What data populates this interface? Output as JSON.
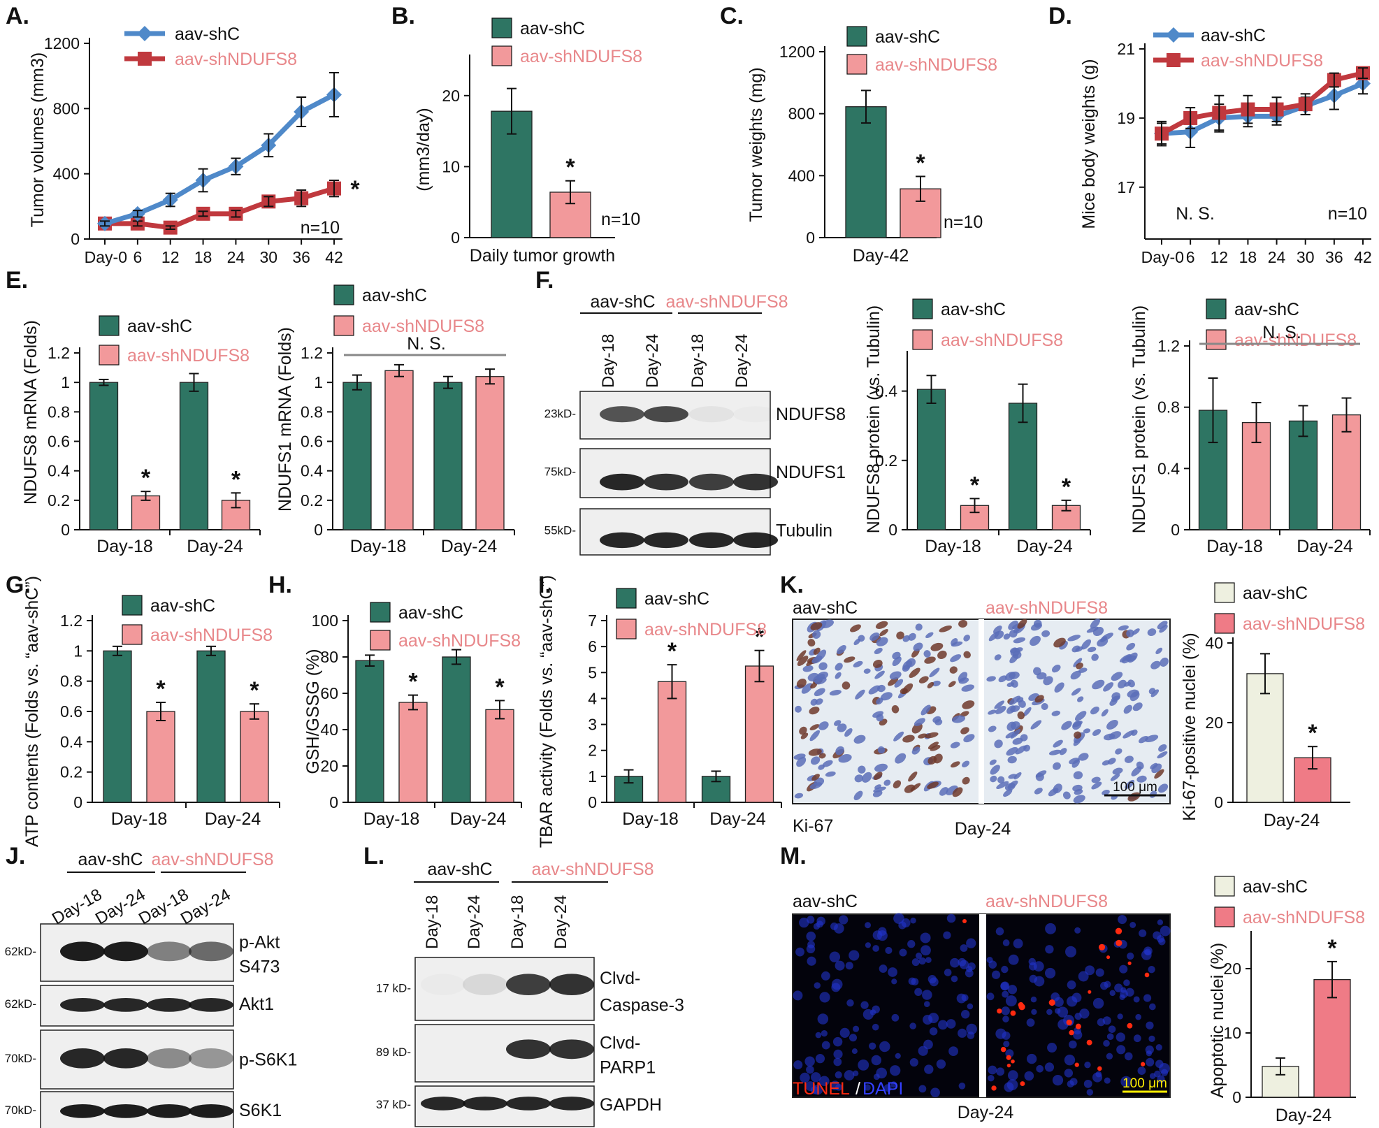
{
  "colors": {
    "shc_bar": "#2e7563",
    "shn_bar": "#f2999b",
    "shc_line": "#4f89c9",
    "shn_line": "#c0393e",
    "shn_text": "#e8878a",
    "ctrl_bar": "#eef0e0",
    "red_bar": "#ef7b86",
    "yellow": "#ffee00",
    "tunel_red": "#ff2a10",
    "dapi_blue": "#2233cc"
  },
  "legend": {
    "shc": "aav-shC",
    "shn": "aav-shNDUFS8"
  },
  "panels": {
    "A": "A.",
    "B": "B.",
    "C": "C.",
    "D": "D.",
    "E": "E.",
    "F": "F.",
    "G": "G.",
    "H": "H.",
    "I": "I.",
    "J": "J.",
    "K": "K.",
    "L": "L.",
    "M": "M."
  },
  "labels": {
    "ns": "N. S.",
    "n10": "n=10",
    "star": "*",
    "day24": "Day-24"
  },
  "chart_data": [
    {
      "id": "A",
      "type": "line",
      "ylabel": "Tumor volumes (mm3)",
      "ylim": [
        0,
        1200
      ],
      "yticks": [
        "0",
        "400",
        "800",
        "1200"
      ],
      "xticks": [
        "Day-0",
        "6",
        "12",
        "18",
        "24",
        "30",
        "36",
        "42"
      ],
      "x": [
        0,
        6,
        12,
        18,
        24,
        30,
        36,
        42
      ],
      "series": [
        {
          "name": "aav-shC",
          "values": [
            95,
            155,
            240,
            360,
            445,
            575,
            780,
            885
          ],
          "err": [
            15,
            20,
            40,
            70,
            50,
            70,
            90,
            135
          ]
        },
        {
          "name": "aav-shNDUFS8",
          "values": [
            95,
            95,
            70,
            155,
            155,
            230,
            250,
            310
          ],
          "err": [
            15,
            15,
            10,
            15,
            20,
            30,
            50,
            50
          ]
        }
      ],
      "annotation": "n=10"
    },
    {
      "id": "B",
      "type": "bar",
      "ylabel": "(mm3/day)",
      "xlabel": "Daily tumor growth",
      "ylim": [
        0,
        25
      ],
      "yticks": [
        "0",
        "10",
        "20"
      ],
      "categories": [
        "aav-shC",
        "aav-shNDUFS8"
      ],
      "values": [
        17.8,
        6.4
      ],
      "err": [
        3.2,
        1.6
      ],
      "annotation": "n=10"
    },
    {
      "id": "C",
      "type": "bar",
      "ylabel": "Tumor weights (mg)",
      "xlabel": "Day-42",
      "ylim": [
        0,
        1200
      ],
      "yticks": [
        "0",
        "400",
        "800",
        "1200"
      ],
      "categories": [
        "aav-shC",
        "aav-shNDUFS8"
      ],
      "values": [
        845,
        315
      ],
      "err": [
        105,
        80
      ],
      "annotation": "n=10"
    },
    {
      "id": "D",
      "type": "line",
      "ylabel": "Mice body weights (g)",
      "ylim": [
        15.5,
        21
      ],
      "yticks": [
        "17",
        "19",
        "21"
      ],
      "xticks": [
        "Day-0",
        "6",
        "12",
        "18",
        "24",
        "30",
        "36",
        "42"
      ],
      "x": [
        0,
        6,
        12,
        18,
        24,
        30,
        36,
        42
      ],
      "series": [
        {
          "name": "aav-shC",
          "values": [
            18.55,
            18.6,
            19.0,
            19.05,
            19.05,
            19.35,
            19.65,
            20.0
          ],
          "err": [
            0.3,
            0.45,
            0.4,
            0.3,
            0.25,
            0.25,
            0.4,
            0.3
          ]
        },
        {
          "name": "aav-shNDUFS8",
          "values": [
            18.55,
            19.0,
            19.15,
            19.25,
            19.25,
            19.4,
            20.1,
            20.3
          ],
          "err": [
            0.35,
            0.3,
            0.5,
            0.4,
            0.35,
            0.3,
            0.2,
            0.15
          ]
        }
      ],
      "annotation": "n=10",
      "note": "N. S."
    },
    {
      "id": "E1",
      "type": "bar",
      "ylabel": "NDUFS8 mRNA (Folds)",
      "ylim": [
        0,
        1.2
      ],
      "yticks": [
        "0",
        "0.2",
        "0.4",
        "0.6",
        "0.8",
        "1",
        "1.2"
      ],
      "categories": [
        "Day-18",
        "Day-24"
      ],
      "series": [
        {
          "name": "aav-shC",
          "values": [
            1.0,
            1.0
          ],
          "err": [
            0.02,
            0.06
          ]
        },
        {
          "name": "aav-shNDUFS8",
          "values": [
            0.23,
            0.2
          ],
          "err": [
            0.03,
            0.05
          ]
        }
      ]
    },
    {
      "id": "E2",
      "type": "bar",
      "ylabel": "NDUFS1 mRNA (Folds)",
      "ylim": [
        0,
        1.2
      ],
      "yticks": [
        "0",
        "0.2",
        "0.4",
        "0.6",
        "0.8",
        "1",
        "1.2"
      ],
      "categories": [
        "Day-18",
        "Day-24"
      ],
      "series": [
        {
          "name": "aav-shC",
          "values": [
            1.0,
            1.0
          ],
          "err": [
            0.05,
            0.04
          ]
        },
        {
          "name": "aav-shNDUFS8",
          "values": [
            1.08,
            1.04
          ],
          "err": [
            0.04,
            0.05
          ]
        }
      ],
      "note": "N. S."
    },
    {
      "id": "F1",
      "type": "bar",
      "ylabel": "NDUFS8 protein (vs. Tubulin)",
      "ylim": [
        0,
        0.5
      ],
      "yticks": [
        "0",
        "0.2",
        "0.4"
      ],
      "categories": [
        "Day-18",
        "Day-24"
      ],
      "series": [
        {
          "name": "aav-shC",
          "values": [
            0.405,
            0.365
          ],
          "err": [
            0.04,
            0.055
          ]
        },
        {
          "name": "aav-shNDUFS8",
          "values": [
            0.07,
            0.07
          ],
          "err": [
            0.02,
            0.015
          ]
        }
      ]
    },
    {
      "id": "F2",
      "type": "bar",
      "ylabel": "NDUFS1 protein (vs. Tubulin)",
      "ylim": [
        0,
        1.2
      ],
      "yticks": [
        "0",
        "0.4",
        "0.8",
        "1.2"
      ],
      "categories": [
        "Day-18",
        "Day-24"
      ],
      "series": [
        {
          "name": "aav-shC",
          "values": [
            0.78,
            0.71
          ],
          "err": [
            0.21,
            0.1
          ]
        },
        {
          "name": "aav-shNDUFS8",
          "values": [
            0.7,
            0.75
          ],
          "err": [
            0.13,
            0.11
          ]
        }
      ],
      "note": "N. S."
    },
    {
      "id": "G",
      "type": "bar",
      "ylabel": "ATP contents (Folds vs. “aav-shC”)",
      "ylim": [
        0,
        1.2
      ],
      "yticks": [
        "0",
        "0.2",
        "0.4",
        "0.6",
        "0.8",
        "1",
        "1.2"
      ],
      "categories": [
        "Day-18",
        "Day-24"
      ],
      "series": [
        {
          "name": "aav-shC",
          "values": [
            1.0,
            1.0
          ],
          "err": [
            0.03,
            0.03
          ]
        },
        {
          "name": "aav-shNDUFS8",
          "values": [
            0.6,
            0.6
          ],
          "err": [
            0.06,
            0.05
          ]
        }
      ]
    },
    {
      "id": "H",
      "type": "bar",
      "ylabel": "GSH/GSSG (%)",
      "ylim": [
        0,
        100
      ],
      "yticks": [
        "0",
        "20",
        "40",
        "60",
        "80",
        "100"
      ],
      "categories": [
        "Day-18",
        "Day-24"
      ],
      "series": [
        {
          "name": "aav-shC",
          "values": [
            78,
            80
          ],
          "err": [
            3,
            4
          ]
        },
        {
          "name": "aav-shNDUFS8",
          "values": [
            55,
            51
          ],
          "err": [
            4,
            5
          ]
        }
      ]
    },
    {
      "id": "I",
      "type": "bar",
      "ylabel": "TBAR activity (Folds vs. “aav-shC”)",
      "ylim": [
        0,
        7
      ],
      "yticks": [
        "0",
        "1",
        "2",
        "3",
        "4",
        "5",
        "6",
        "7"
      ],
      "categories": [
        "Day-18",
        "Day-24"
      ],
      "series": [
        {
          "name": "aav-shC",
          "values": [
            1.0,
            1.0
          ],
          "err": [
            0.25,
            0.2
          ]
        },
        {
          "name": "aav-shNDUFS8",
          "values": [
            4.65,
            5.25
          ],
          "err": [
            0.65,
            0.6
          ]
        }
      ]
    },
    {
      "id": "K",
      "type": "bar",
      "ylabel": "Ki-67-positive nuclei (%)",
      "xlabel": "Day-24",
      "ylim": [
        0,
        40
      ],
      "yticks": [
        "0",
        "20",
        "40"
      ],
      "categories": [
        "aav-shC",
        "aav-shNDUFS8"
      ],
      "values": [
        32.3,
        11.2
      ],
      "err": [
        5,
        2.8
      ]
    },
    {
      "id": "M",
      "type": "bar",
      "ylabel": "Apoptotic nuclei (%)",
      "xlabel": "Day-24",
      "ylim": [
        0,
        25
      ],
      "yticks": [
        "0",
        "10",
        "20"
      ],
      "categories": [
        "aav-shC",
        "aav-shNDUFS8"
      ],
      "values": [
        4.8,
        18.3
      ],
      "err": [
        1.3,
        2.8
      ]
    }
  ],
  "blots": {
    "F": {
      "lanes": [
        "Day-18",
        "Day-24",
        "Day-18",
        "Day-24"
      ],
      "rows": [
        {
          "marker": "23kD-",
          "protein": "NDUFS8",
          "intensity": [
            0.7,
            0.75,
            0.05,
            0.02
          ]
        },
        {
          "marker": "75kD-",
          "protein": "NDUFS1",
          "intensity": [
            0.9,
            0.85,
            0.8,
            0.85
          ]
        },
        {
          "marker": "55kD-",
          "protein": "Tubulin",
          "intensity": [
            0.9,
            0.9,
            0.9,
            0.9
          ]
        }
      ]
    },
    "J": {
      "lanes": [
        "Day-18",
        "Day-24",
        "Day-18",
        "Day-24"
      ],
      "rows": [
        {
          "marker": "62kD-",
          "protein": "p-Akt",
          "protein2": "S473",
          "intensity": [
            0.95,
            0.95,
            0.5,
            0.6
          ]
        },
        {
          "marker": "62kD-",
          "protein": "Akt1",
          "intensity": [
            0.9,
            0.9,
            0.9,
            0.9
          ]
        },
        {
          "marker": "70kD-",
          "protein": "p-S6K1",
          "intensity": [
            0.9,
            0.9,
            0.45,
            0.4
          ]
        },
        {
          "marker": "70kD-",
          "protein": "S6K1",
          "intensity": [
            0.95,
            0.95,
            0.95,
            0.95
          ]
        }
      ]
    },
    "L": {
      "lanes": [
        "Day-18",
        "Day-24",
        "Day-18",
        "Day-24"
      ],
      "rows": [
        {
          "marker": "17 kD-",
          "protein": "Clvd-",
          "protein2": "Caspase-3",
          "intensity": [
            0.02,
            0.1,
            0.8,
            0.85
          ]
        },
        {
          "marker": "89 kD-",
          "protein": "Clvd-",
          "protein2": "PARP1",
          "intensity": [
            0.0,
            0.0,
            0.85,
            0.85
          ]
        },
        {
          "marker": "37 kD-",
          "protein": "GAPDH",
          "intensity": [
            0.9,
            0.9,
            0.9,
            0.9
          ]
        }
      ]
    }
  },
  "images": {
    "K": {
      "left": "aav-shC",
      "right": "aav-shNDUFS8",
      "stain": "Ki-67",
      "bottom": "Day-24",
      "scale": "100 μm"
    },
    "M": {
      "left": "aav-shC",
      "right": "aav-shNDUFS8",
      "stain1": "TUNEL",
      "sep": "/",
      "stain2": "DAPI",
      "bottom": "Day-24",
      "scale": "100 μm"
    }
  }
}
